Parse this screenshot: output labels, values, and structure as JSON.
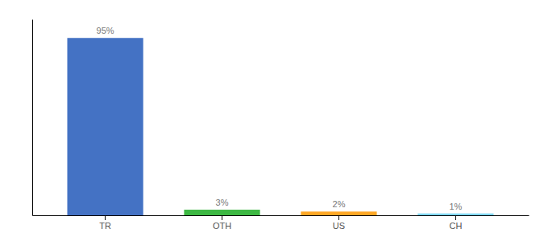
{
  "chart_data": {
    "type": "bar",
    "categories": [
      "TR",
      "OTH",
      "US",
      "CH"
    ],
    "values": [
      95,
      3,
      2,
      1
    ],
    "value_labels": [
      "95%",
      "3%",
      "2%",
      "1%"
    ],
    "colors": [
      "#4472c4",
      "#3db843",
      "#ffa726",
      "#80d8f5"
    ],
    "ylim": [
      0,
      105
    ],
    "yticks": [],
    "grid": false,
    "data_labels": true,
    "tick_labels": "x"
  }
}
